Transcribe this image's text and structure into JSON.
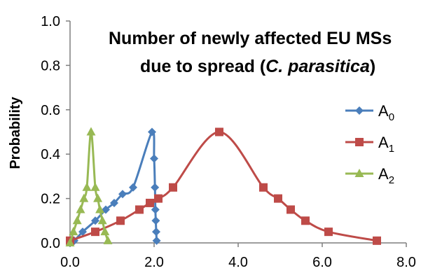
{
  "chart_data": {
    "type": "line",
    "title_lines": [
      "Number of newly affected EU MSs",
      "due to spread (",
      "C. parasitica",
      ")"
    ],
    "ylabel": "Probability",
    "xlabel": "",
    "xlim": [
      0,
      8
    ],
    "ylim": [
      0,
      1
    ],
    "x_ticks": [
      "0.0",
      "2.0",
      "4.0",
      "6.0",
      "8.0"
    ],
    "y_ticks": [
      "0.0",
      "0.2",
      "0.4",
      "0.6",
      "0.8",
      "1.0"
    ],
    "grid": false,
    "legend_position": "right",
    "series": [
      {
        "name": "A0",
        "name_base": "A",
        "name_sub": "0",
        "color": "#4a7ebb",
        "marker": "diamond",
        "points": [
          [
            0.0,
            0.0
          ],
          [
            0.1,
            0.01
          ],
          [
            0.3,
            0.05
          ],
          [
            0.6,
            0.1
          ],
          [
            0.85,
            0.15
          ],
          [
            1.05,
            0.18
          ],
          [
            1.25,
            0.22
          ],
          [
            1.5,
            0.25
          ],
          [
            1.95,
            0.5
          ],
          [
            2.0,
            0.38
          ],
          [
            2.02,
            0.25
          ],
          [
            2.03,
            0.15
          ],
          [
            2.04,
            0.1
          ],
          [
            2.05,
            0.05
          ],
          [
            2.06,
            0.01
          ]
        ]
      },
      {
        "name": "A1",
        "name_base": "A",
        "name_sub": "1",
        "color": "#be4b48",
        "marker": "square",
        "points": [
          [
            0.0,
            0.01
          ],
          [
            0.6,
            0.05
          ],
          [
            1.2,
            0.1
          ],
          [
            1.65,
            0.15
          ],
          [
            1.9,
            0.18
          ],
          [
            2.1,
            0.2
          ],
          [
            2.45,
            0.25
          ],
          [
            3.55,
            0.5
          ],
          [
            4.6,
            0.25
          ],
          [
            4.95,
            0.2
          ],
          [
            5.25,
            0.15
          ],
          [
            5.6,
            0.1
          ],
          [
            6.15,
            0.05
          ],
          [
            7.3,
            0.01
          ]
        ]
      },
      {
        "name": "A2",
        "name_base": "A",
        "name_sub": "2",
        "color": "#98b954",
        "marker": "triangle",
        "points": [
          [
            0.0,
            0.0
          ],
          [
            0.08,
            0.05
          ],
          [
            0.17,
            0.1
          ],
          [
            0.25,
            0.15
          ],
          [
            0.33,
            0.2
          ],
          [
            0.4,
            0.25
          ],
          [
            0.5,
            0.5
          ],
          [
            0.6,
            0.25
          ],
          [
            0.66,
            0.2
          ],
          [
            0.71,
            0.15
          ],
          [
            0.77,
            0.1
          ],
          [
            0.83,
            0.05
          ],
          [
            0.9,
            0.01
          ]
        ]
      }
    ]
  }
}
